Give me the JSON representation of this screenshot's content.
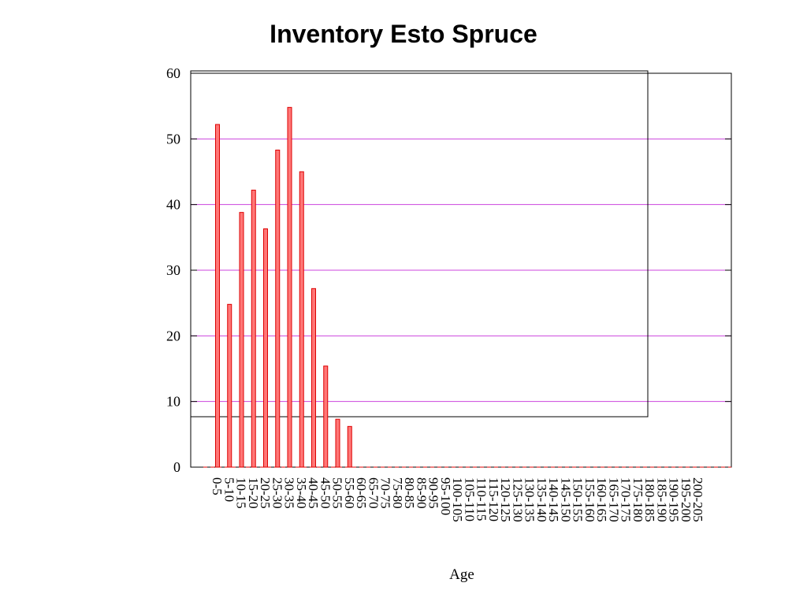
{
  "chart_data": {
    "type": "bar",
    "title": "Inventory Esto Spruce",
    "xlabel": "Age",
    "ylabel": "",
    "ylim": [
      0,
      60
    ],
    "yticks": [
      "0",
      "10",
      "20",
      "30",
      "40",
      "50",
      "60"
    ],
    "grid": "horizontal",
    "categories": [
      "0-5",
      "5-10",
      "10-15",
      "15-20",
      "20-25",
      "25-30",
      "30-35",
      "35-40",
      "40-45",
      "45-50",
      "50-55",
      "55-60",
      "60-65",
      "65-70",
      "70-75",
      "75-80",
      "80-85",
      "85-90",
      "90-95",
      "95-100",
      "100-105",
      "105-110",
      "110-115",
      "115-120",
      "120-125",
      "125-130",
      "130-135",
      "135-140",
      "140-145",
      "145-150",
      "150-155",
      "155-160",
      "160-165",
      "165-170",
      "170-175",
      "175-180",
      "180-185",
      "185-190",
      "190-195",
      "195-200",
      "200-205"
    ],
    "values": [
      52.2,
      24.8,
      38.8,
      42.2,
      36.3,
      48.3,
      54.8,
      45.0,
      27.2,
      15.4,
      7.3,
      6.2,
      0,
      0,
      0,
      0,
      0,
      0,
      0,
      0,
      0,
      0,
      0,
      0,
      0,
      0,
      0,
      0,
      0,
      0,
      0,
      0,
      0,
      0,
      0,
      0,
      0,
      0,
      0,
      0,
      0
    ],
    "colors": {
      "bar_fill": "#ff7777",
      "bar_stroke": "#dd0000",
      "grid": "#cc44dd",
      "axis": "#000000"
    }
  }
}
